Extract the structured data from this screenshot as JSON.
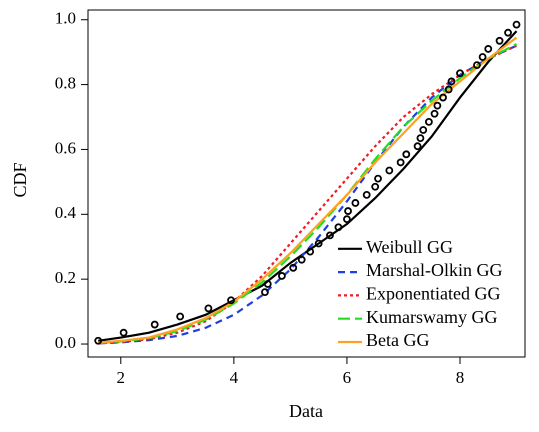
{
  "chart_data": {
    "type": "line",
    "x_label": "Data",
    "y_label": "CDF",
    "xlim": [
      1.42,
      9.15
    ],
    "ylim": [
      -0.04,
      1.03
    ],
    "xticks": [
      2,
      4,
      6,
      8
    ],
    "yticks": [
      {
        "value": 0,
        "label": "0.0"
      },
      {
        "value": 0.2,
        "label": "0.2"
      },
      {
        "value": 0.4,
        "label": "0.4"
      },
      {
        "value": 0.6,
        "label": "0.6"
      },
      {
        "value": 0.8,
        "label": "0.8"
      },
      {
        "value": 1,
        "label": "1.0"
      }
    ],
    "legend": "bottom-right",
    "x": [
      1.6,
      2,
      2.5,
      3,
      3.5,
      4,
      4.5,
      5,
      5.5,
      6,
      6.5,
      7,
      7.5,
      8,
      8.5,
      9
    ],
    "series": [
      {
        "name": "Weibull GG",
        "color": "#000000",
        "dash": "solid",
        "values": [
          0.01,
          0.02,
          0.035,
          0.06,
          0.09,
          0.135,
          0.18,
          0.25,
          0.31,
          0.37,
          0.45,
          0.54,
          0.64,
          0.76,
          0.87,
          0.965
        ]
      },
      {
        "name": "Marshal-Olkin GG",
        "color": "#1f3fe0",
        "dash": "dashed",
        "values": [
          0.002,
          0.005,
          0.012,
          0.025,
          0.05,
          0.09,
          0.15,
          0.23,
          0.33,
          0.44,
          0.56,
          0.67,
          0.76,
          0.83,
          0.88,
          0.92
        ]
      },
      {
        "name": "Exponentiated GG",
        "color": "#ee1c25",
        "dash": "dotted",
        "values": [
          0.002,
          0.006,
          0.015,
          0.035,
          0.07,
          0.13,
          0.21,
          0.31,
          0.41,
          0.51,
          0.61,
          0.7,
          0.77,
          0.83,
          0.88,
          0.92
        ]
      },
      {
        "name": "Kumarswamy GG",
        "color": "#22dd22",
        "dash": "longdash",
        "values": [
          0.003,
          0.008,
          0.018,
          0.04,
          0.075,
          0.125,
          0.19,
          0.27,
          0.36,
          0.46,
          0.57,
          0.67,
          0.75,
          0.82,
          0.88,
          0.925
        ]
      },
      {
        "name": "Beta GG",
        "color": "#ffa020",
        "dash": "solid",
        "values": [
          0.004,
          0.01,
          0.02,
          0.045,
          0.08,
          0.13,
          0.2,
          0.28,
          0.37,
          0.46,
          0.56,
          0.65,
          0.74,
          0.81,
          0.88,
          0.945
        ]
      }
    ],
    "points": {
      "color": "#000000",
      "x": [
        1.6,
        2.05,
        2.6,
        3.05,
        3.55,
        3.95,
        4.55,
        4.6,
        4.85,
        5.05,
        5.2,
        5.35,
        5.5,
        5.7,
        5.85,
        6.0,
        6.02,
        6.15,
        6.35,
        6.5,
        6.55,
        6.75,
        6.95,
        7.05,
        7.25,
        7.3,
        7.35,
        7.45,
        7.55,
        7.6,
        7.7,
        7.8,
        7.85,
        8.0,
        8.3,
        8.4,
        8.5,
        8.7,
        8.85,
        9.0
      ],
      "values": [
        0.01,
        0.035,
        0.06,
        0.085,
        0.11,
        0.135,
        0.16,
        0.185,
        0.21,
        0.235,
        0.26,
        0.285,
        0.31,
        0.335,
        0.36,
        0.385,
        0.41,
        0.435,
        0.46,
        0.485,
        0.51,
        0.535,
        0.56,
        0.585,
        0.61,
        0.635,
        0.66,
        0.685,
        0.71,
        0.735,
        0.76,
        0.785,
        0.81,
        0.835,
        0.86,
        0.885,
        0.91,
        0.935,
        0.96,
        0.985
      ]
    }
  }
}
